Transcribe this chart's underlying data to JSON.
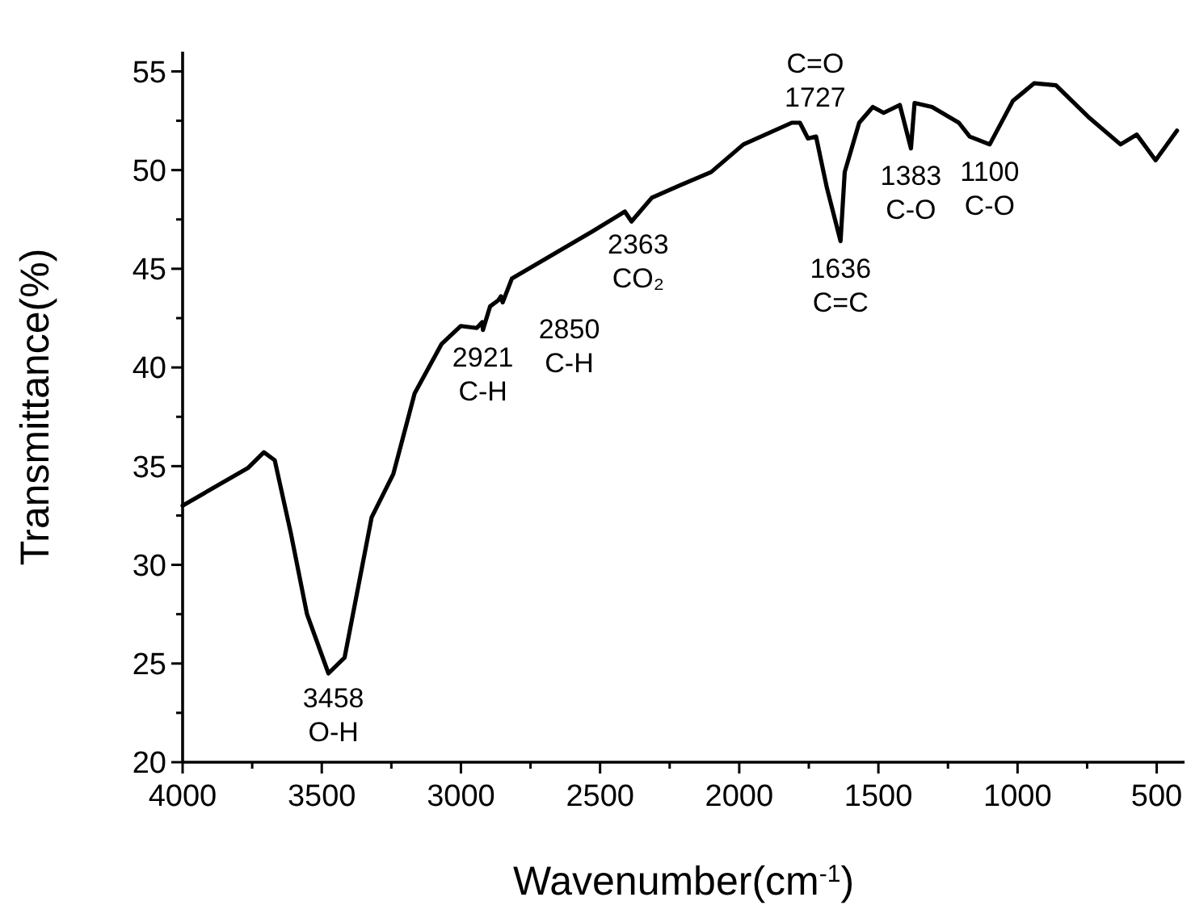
{
  "chart_data": {
    "type": "line",
    "xlabel": "Wavenumber(cm$^{-1}$)",
    "ylabel": "Transmittance(%)",
    "xlim": [
      4000,
      400
    ],
    "ylim": [
      20,
      56
    ],
    "xticks": [
      4000,
      {
        "value": 3750,
        "label": null
      },
      3500,
      {
        "value": 3250,
        "label": null
      },
      3000,
      {
        "value": 2750,
        "label": null
      },
      2500,
      {
        "value": 2250,
        "label": null
      },
      2000,
      {
        "value": 1750,
        "label": null
      },
      1500,
      {
        "value": 1250,
        "label": null
      },
      1000,
      {
        "value": 750,
        "label": null
      },
      500
    ],
    "yticks": [
      20,
      {
        "value": 22.5,
        "label": null
      },
      25,
      {
        "value": 27.5,
        "label": null
      },
      30,
      {
        "value": 32.5,
        "label": null
      },
      35,
      {
        "value": 37.5,
        "label": null
      },
      40,
      {
        "value": 42.5,
        "label": null
      },
      45,
      {
        "value": 47.5,
        "label": null
      },
      50,
      {
        "value": 52.5,
        "label": null
      },
      55
    ],
    "grid": false,
    "marker": "none",
    "line_style": "solid",
    "series": [
      {
        "color": "#000000",
        "x": [
          4000,
          3766,
          3708,
          3669,
          3611,
          3553,
          3476,
          3418,
          3321,
          3243,
          3166,
          3069,
          3001,
          2943,
          2923,
          2921,
          2895,
          2866,
          2856,
          2850,
          2817,
          2527,
          2411,
          2387,
          2314,
          2217,
          2101,
          1985,
          1811,
          1782,
          1753,
          1724,
          1685,
          1636,
          1621,
          1569,
          1520,
          1481,
          1423,
          1383,
          1370,
          1307,
          1211,
          1172,
          1100,
          1017,
          940,
          862,
          746,
          630,
          572,
          504,
          427
        ],
        "values": [
          33.0,
          34.9,
          35.7,
          35.3,
          31.6,
          27.5,
          24.5,
          25.3,
          32.4,
          34.6,
          38.7,
          41.2,
          42.1,
          42.0,
          42.3,
          41.9,
          43.1,
          43.4,
          43.6,
          43.3,
          44.5,
          46.9,
          47.9,
          47.4,
          48.6,
          49.2,
          49.9,
          51.3,
          52.4,
          52.4,
          51.6,
          51.7,
          49.1,
          46.4,
          49.9,
          52.4,
          53.2,
          52.9,
          53.3,
          51.1,
          53.4,
          53.2,
          52.4,
          51.7,
          51.3,
          53.5,
          54.4,
          54.3,
          52.7,
          51.3,
          51.8,
          50.5,
          52.0
        ]
      }
    ],
    "annotations": [
      {
        "text": "3458\nO-H",
        "x": 3458,
        "y": 24.6
      },
      {
        "text": "2921\nC-H",
        "x": 2921,
        "y": 41.9
      },
      {
        "text": "2850\nC-H",
        "x": 2850,
        "y": 43.3
      },
      {
        "text": "2363\nCO₂",
        "x": 2363,
        "y": 47.6
      },
      {
        "text": "C=O\n1727",
        "x": 1727,
        "y": 51.7
      },
      {
        "text": "1636\nC=C",
        "x": 1636,
        "y": 46.4
      },
      {
        "text": "1383\nC-O",
        "x": 1383,
        "y": 51.1
      },
      {
        "text": "1100\nC-O",
        "x": 1100,
        "y": 51.3
      }
    ]
  }
}
